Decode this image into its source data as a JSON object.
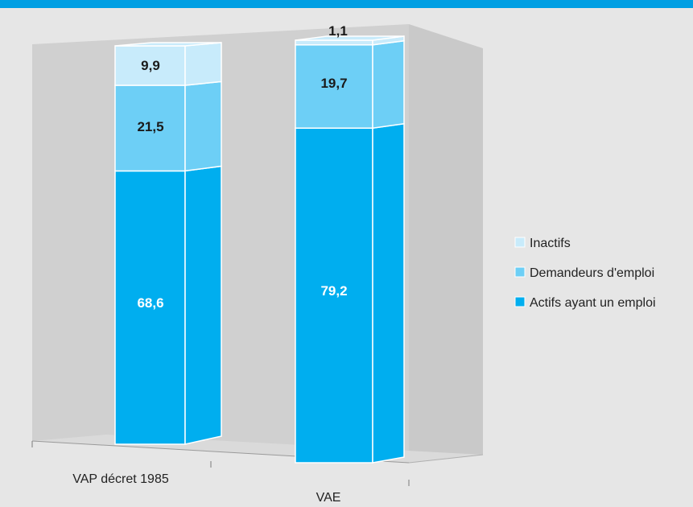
{
  "colors": {
    "inactifs": "#c8ebfb",
    "demandeurs": "#6dcff6",
    "actifs": "#00aeef",
    "bar_top": "#00a0e0"
  },
  "chart_data": {
    "type": "bar",
    "stacked": true,
    "three_d": true,
    "categories": [
      "VAP décret 1985",
      "VAE"
    ],
    "series": [
      {
        "name": "Actifs ayant un emploi",
        "values": [
          68.6,
          79.2
        ],
        "labels": [
          "68,6",
          "79,2"
        ],
        "color": "#00aeef"
      },
      {
        "name": "Demandeurs d'emploi",
        "values": [
          21.5,
          19.7
        ],
        "labels": [
          "21,5",
          "19,7"
        ],
        "color": "#6dcff6"
      },
      {
        "name": "Inactifs",
        "values": [
          9.9,
          1.1
        ],
        "labels": [
          "9,9",
          "1,1"
        ],
        "color": "#c8ebfb"
      }
    ],
    "ylim": [
      0,
      100
    ],
    "legend_position": "right",
    "legend_order": [
      "Inactifs",
      "Demandeurs d'emploi",
      "Actifs ayant un emploi"
    ],
    "grid": false
  }
}
